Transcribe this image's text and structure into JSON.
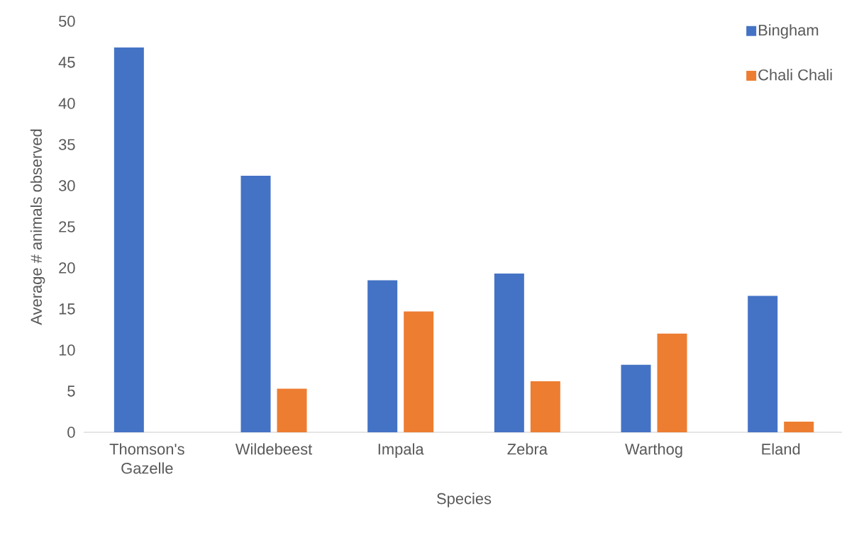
{
  "chart_data": {
    "type": "bar",
    "xlabel": "Species",
    "ylabel": "Average # animals observed",
    "categories": [
      "Thomson's Gazelle",
      "Wildebeest",
      "Impala",
      "Zebra",
      "Warthog",
      "Eland"
    ],
    "series": [
      {
        "name": "Bingham",
        "color": "#4472c4",
        "values": [
          46.8,
          31.2,
          18.5,
          19.3,
          8.2,
          16.6
        ]
      },
      {
        "name": "Chali Chali",
        "color": "#ed7d31",
        "values": [
          0,
          5.3,
          14.7,
          6.2,
          12.0,
          1.3
        ]
      }
    ],
    "ylim": [
      0,
      50
    ],
    "yticks": [
      0,
      5,
      10,
      15,
      20,
      25,
      30,
      35,
      40,
      45,
      50
    ],
    "legend": "top right"
  }
}
